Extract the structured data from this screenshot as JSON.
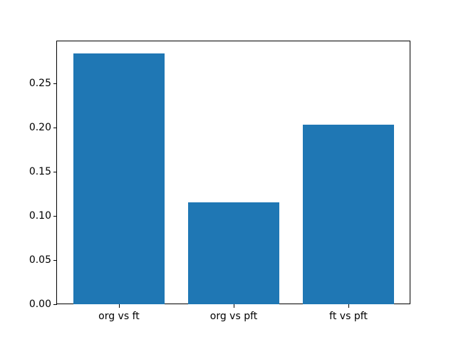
{
  "figure": {
    "background": "#ffffff",
    "spine_color": "#000000",
    "tick_color": "#000000"
  },
  "chart_data": {
    "type": "bar",
    "categories": [
      "org vs ft",
      "org vs pft",
      "ft vs pft"
    ],
    "values": [
      0.284,
      0.115,
      0.203
    ],
    "title": "",
    "xlabel": "",
    "ylabel": "",
    "ylim": [
      0,
      0.2976
    ],
    "xlim": [
      -0.54,
      2.54
    ],
    "bar_width": 0.8,
    "yticks": [
      0.0,
      0.05,
      0.1,
      0.15,
      0.2,
      0.25
    ],
    "ytick_labels": [
      "0.00",
      "0.05",
      "0.10",
      "0.15",
      "0.20",
      "0.25"
    ],
    "bar_color": "#1f77b4",
    "grid": false,
    "legend": null
  }
}
